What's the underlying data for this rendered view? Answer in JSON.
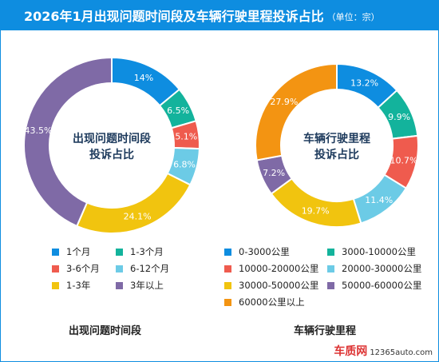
{
  "header": {
    "title": "2026年1月出现问题时间段及车辆行驶里程投诉占比",
    "unit": "（单位：宗）"
  },
  "colors": {
    "header_bg": "#0e8de0",
    "blue": "#0e8de0",
    "teal": "#13b39c",
    "red": "#ef5b4e",
    "light_blue": "#6ccbe6",
    "yellow": "#f1c40f",
    "purple": "#7f6aa6",
    "orange": "#f39412"
  },
  "chart_data": [
    {
      "type": "pie",
      "center_label": [
        "出现问题时间段",
        "投诉占比"
      ],
      "caption": "出现问题时间段",
      "labels": [
        "1个月",
        "1-3个月",
        "3-6个月",
        "6-12个月",
        "1-3年",
        "3年以上"
      ],
      "values": [
        14,
        6.5,
        5.1,
        6.8,
        24.1,
        43.5
      ],
      "value_labels": [
        "14%",
        "6.5%",
        "5.1%",
        "6.8%",
        "24.1%",
        "43.5%"
      ],
      "colors": [
        "#0e8de0",
        "#13b39c",
        "#ef5b4e",
        "#6ccbe6",
        "#f1c40f",
        "#7f6aa6"
      ]
    },
    {
      "type": "pie",
      "center_label": [
        "车辆行驶里程",
        "投诉占比"
      ],
      "caption": "车辆行驶里程",
      "labels": [
        "0-3000公里",
        "3000-10000公里",
        "10000-20000公里",
        "20000-30000公里",
        "30000-50000公里",
        "50000-60000公里",
        "60000公里以上"
      ],
      "values": [
        13.2,
        9.9,
        10.7,
        11.4,
        19.7,
        7.2,
        27.9
      ],
      "value_labels": [
        "13.2%",
        "9.9%",
        "10.7%",
        "11.4%",
        "19.7%",
        "7.2%",
        "27.9%"
      ],
      "colors": [
        "#0e8de0",
        "#13b39c",
        "#ef5b4e",
        "#6ccbe6",
        "#f1c40f",
        "#7f6aa6",
        "#f39412"
      ]
    }
  ],
  "watermark": {
    "brand": "车质网",
    "site": "12365auto.com"
  }
}
